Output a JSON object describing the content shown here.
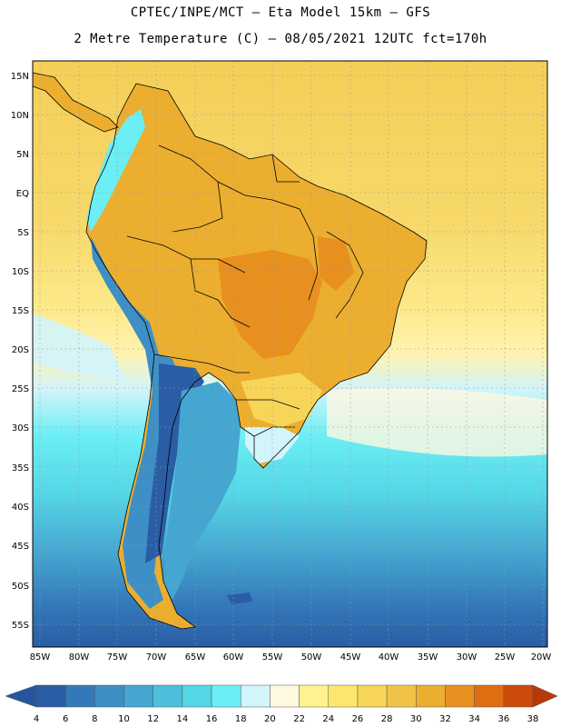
{
  "header": {
    "line1": "CPTEC/INPE/MCT –  Eta Model 15km – GFS",
    "line2": "2 Metre Temperature (C) – 08/05/2021 12UTC fct=170h"
  },
  "axes": {
    "lat_labels": [
      "15N",
      "10N",
      "5N",
      "EQ",
      "5S",
      "10S",
      "15S",
      "20S",
      "25S",
      "30S",
      "35S",
      "40S",
      "45S",
      "50S",
      "55S"
    ],
    "lon_labels": [
      "85W",
      "80W",
      "75W",
      "70W",
      "65W",
      "60W",
      "55W",
      "50W",
      "45W",
      "40W",
      "35W",
      "30W",
      "25W",
      "20W"
    ]
  },
  "colorbar": {
    "labels": [
      "4",
      "6",
      "8",
      "10",
      "12",
      "14",
      "16",
      "18",
      "20",
      "22",
      "24",
      "26",
      "28",
      "30",
      "32",
      "34",
      "36",
      "38"
    ],
    "colors": [
      "#2a5da5",
      "#3378b8",
      "#3d8fc5",
      "#45a6d1",
      "#4dbfdb",
      "#55d6e5",
      "#6beef4",
      "#d2f4fb",
      "#fff8e1",
      "#fff390",
      "#fde66e",
      "#f7d558",
      "#f0c348",
      "#ecae2f",
      "#e8901f",
      "#df6d12",
      "#cc4a0a"
    ],
    "low_color": "#24559e",
    "high_color": "#b83808"
  },
  "map_colors": {
    "ocean_warm": "#f7d35c",
    "ocean_mid": "#fde98a",
    "ocean_cool": "#d2f4fb",
    "ocean_cold": "#6beef4",
    "ocean_colder": "#4dbfdb",
    "ocean_coldest": "#3378b8",
    "land_hot": "#ecae2f",
    "land_very_hot": "#e8901f",
    "andes": "#3d8fc5",
    "patagonia": "#2a5da5"
  }
}
